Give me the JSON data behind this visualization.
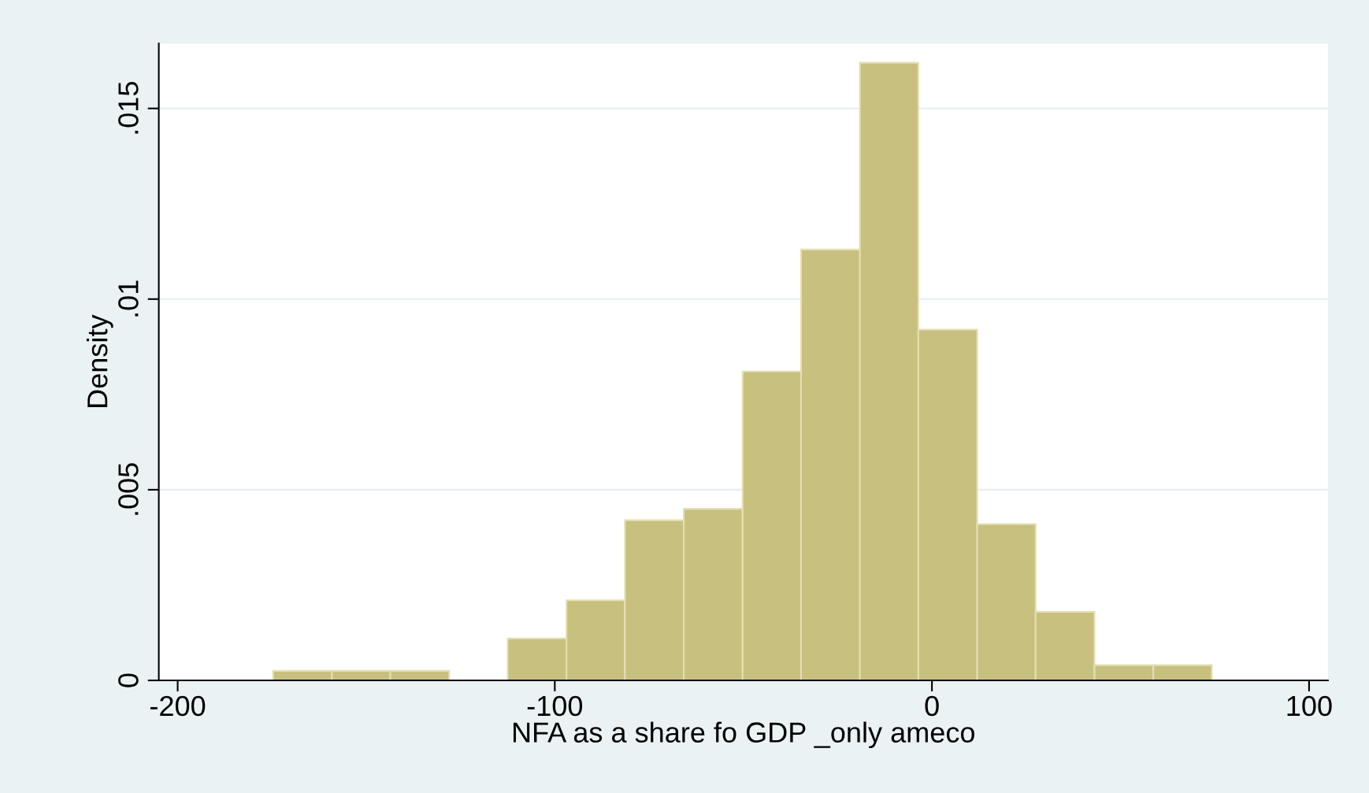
{
  "chart_data": {
    "type": "histogram",
    "xlabel": "NFA as a share fo GDP _only ameco",
    "ylabel": "Density",
    "bins": [
      -174.7,
      -159.1,
      -143.6,
      -128.0,
      -112.5,
      -96.9,
      -81.4,
      -65.8,
      -50.2,
      -34.7,
      -19.1,
      -3.6,
      12.0,
      27.5,
      43.1,
      58.7,
      74.2
    ],
    "values": [
      0.00025,
      0.00025,
      0.00025,
      0,
      0.0011,
      0.0021,
      0.0042,
      0.0045,
      0.0081,
      0.0113,
      0.0162,
      0.0092,
      0.0041,
      0.0018,
      0.0004,
      0.0004
    ],
    "color": "#c8c07e",
    "xlim": [
      -205,
      105
    ],
    "xticks": [
      -200,
      -100,
      0,
      100
    ],
    "ylim": [
      0,
      0.0167
    ],
    "yticks": [
      {
        "value": 0,
        "label": "0"
      },
      {
        "value": 0.005,
        "label": ".005"
      },
      {
        "value": 0.01,
        "label": ".01"
      },
      {
        "value": 0.015,
        "label": ".015"
      }
    ],
    "grid": "y"
  }
}
